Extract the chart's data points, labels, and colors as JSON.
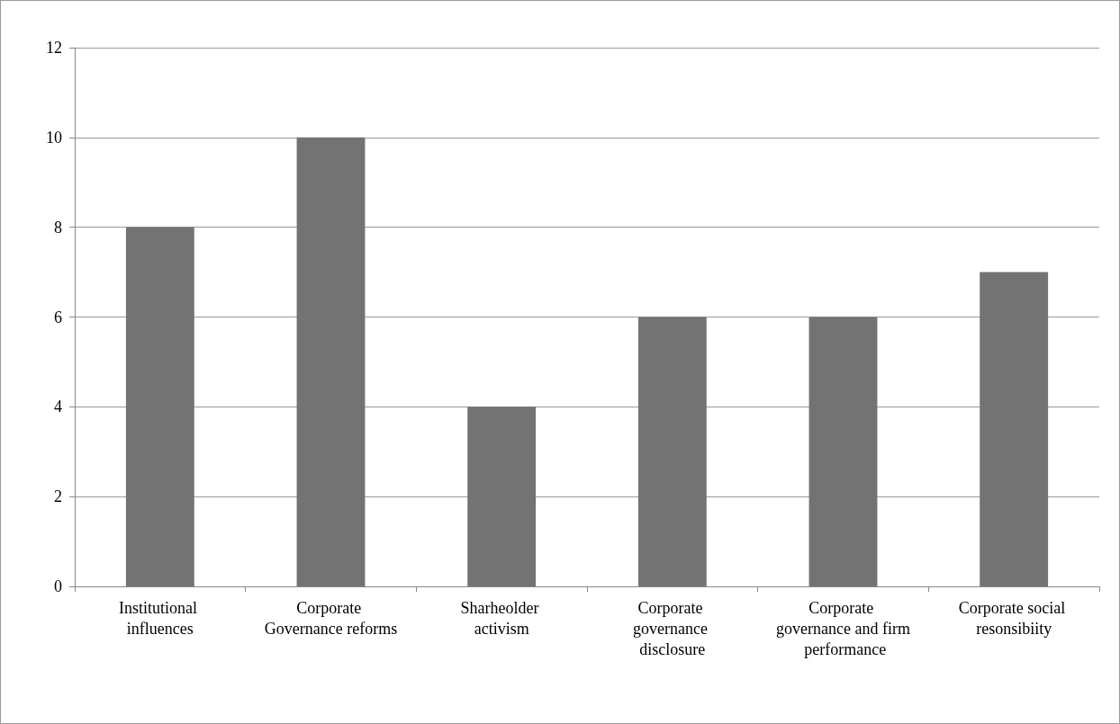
{
  "chart_data": {
    "type": "bar",
    "categories": [
      "Institutional influences",
      "Corporate Governance reforms",
      "Sharheolder activism",
      "Corporate governance disclosure",
      "Corporate governance and firm performance",
      "Corporate social resonsibiity"
    ],
    "values": [
      8,
      10,
      4,
      6,
      6,
      7
    ],
    "color": "#737373",
    "ylim": [
      0,
      12
    ],
    "yticks": [
      0,
      2,
      4,
      6,
      8,
      10,
      12
    ],
    "grid": "y"
  }
}
